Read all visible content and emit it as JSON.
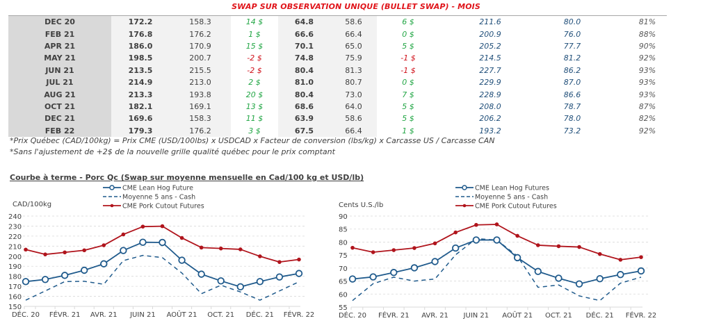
{
  "table": {
    "title": "SWAP SUR OBSERVATION UNIQUE (BULLET SWAP) - MOIS",
    "rows": [
      {
        "month": "DEC 20",
        "qc_cad": "172.2",
        "qc_avg": "158.3",
        "diff1": "14 $",
        "diff1_sign": "pos",
        "us_cents": "64.8",
        "us_avg": "58.6",
        "diff2": "6 $",
        "diff2_sign": "pos",
        "cutout_cad": "211.6",
        "cutout_us": "80.0",
        "ratio": "81%"
      },
      {
        "month": "FEB 21",
        "qc_cad": "176.8",
        "qc_avg": "176.2",
        "diff1": "1 $",
        "diff1_sign": "pos",
        "us_cents": "66.6",
        "us_avg": "66.4",
        "diff2": "0 $",
        "diff2_sign": "pos",
        "cutout_cad": "200.9",
        "cutout_us": "76.0",
        "ratio": "88%"
      },
      {
        "month": "APR 21",
        "qc_cad": "186.0",
        "qc_avg": "170.9",
        "diff1": "15 $",
        "diff1_sign": "pos",
        "us_cents": "70.1",
        "us_avg": "65.0",
        "diff2": "5 $",
        "diff2_sign": "pos",
        "cutout_cad": "205.2",
        "cutout_us": "77.7",
        "ratio": "90%"
      },
      {
        "month": "MAY 21",
        "qc_cad": "198.5",
        "qc_avg": "200.7",
        "diff1": "-2 $",
        "diff1_sign": "neg",
        "us_cents": "74.8",
        "us_avg": "75.9",
        "diff2": "-1 $",
        "diff2_sign": "neg",
        "cutout_cad": "214.5",
        "cutout_us": "81.2",
        "ratio": "92%"
      },
      {
        "month": "JUN 21",
        "qc_cad": "213.5",
        "qc_avg": "215.5",
        "diff1": "-2 $",
        "diff1_sign": "neg",
        "us_cents": "80.4",
        "us_avg": "81.3",
        "diff2": "-1 $",
        "diff2_sign": "neg",
        "cutout_cad": "227.7",
        "cutout_us": "86.2",
        "ratio": "93%"
      },
      {
        "month": "JUL 21",
        "qc_cad": "214.9",
        "qc_avg": "213.0",
        "diff1": "2 $",
        "diff1_sign": "pos",
        "us_cents": "81.0",
        "us_avg": "80.7",
        "diff2": "0 $",
        "diff2_sign": "pos",
        "cutout_cad": "229.9",
        "cutout_us": "87.0",
        "ratio": "93%"
      },
      {
        "month": "AUG 21",
        "qc_cad": "213.3",
        "qc_avg": "193.8",
        "diff1": "20 $",
        "diff1_sign": "pos",
        "us_cents": "80.4",
        "us_avg": "73.0",
        "diff2": "7 $",
        "diff2_sign": "pos",
        "cutout_cad": "228.9",
        "cutout_us": "86.6",
        "ratio": "93%"
      },
      {
        "month": "OCT 21",
        "qc_cad": "182.1",
        "qc_avg": "169.1",
        "diff1": "13 $",
        "diff1_sign": "pos",
        "us_cents": "68.6",
        "us_avg": "64.0",
        "diff2": "5 $",
        "diff2_sign": "pos",
        "cutout_cad": "208.0",
        "cutout_us": "78.7",
        "ratio": "87%"
      },
      {
        "month": "DEC 21",
        "qc_cad": "169.6",
        "qc_avg": "158.3",
        "diff1": "11 $",
        "diff1_sign": "pos",
        "us_cents": "63.9",
        "us_avg": "58.6",
        "diff2": "5 $",
        "diff2_sign": "pos",
        "cutout_cad": "206.2",
        "cutout_us": "78.0",
        "ratio": "82%"
      },
      {
        "month": "FEB 22",
        "qc_cad": "179.3",
        "qc_avg": "176.2",
        "diff1": "3 $",
        "diff1_sign": "pos",
        "us_cents": "67.5",
        "us_avg": "66.4",
        "diff2": "1 $",
        "diff2_sign": "pos",
        "cutout_cad": "193.2",
        "cutout_us": "73.2",
        "ratio": "92%"
      }
    ],
    "notes": [
      "*Prix Québec (CAD/100kg) = Prix CME (USD/100lbs) x USDCAD x Facteur de conversion (lbs/kg) x Carcasse US / Carcasse CAN",
      "*Sans l'ajustement de +2$ de la nouvelle grille qualité québec pour le prix comptant"
    ]
  },
  "charts_title": "Courbe à terme - Porc Qc (Swap sur moyenne mensuelle en Cad/100 kg et USD/lb)",
  "colors": {
    "lean_hog": "#1f5a8c",
    "average": "#1f5a8c",
    "cutout": "#b0141c",
    "positive": "#22a645",
    "negative": "#d0121b",
    "title": "#e0151b"
  },
  "chart_data": [
    {
      "type": "line",
      "title": "",
      "ylabel": "CAD/100kg",
      "xlabel": "",
      "ylim": [
        150,
        240
      ],
      "yticks": [
        150,
        160,
        170,
        180,
        190,
        200,
        210,
        220,
        230,
        240
      ],
      "grid": true,
      "legend_position": "top-center",
      "x": [
        "DÉC. 20",
        "JANV. 21",
        "FÉVR. 21",
        "MARS 21",
        "AVR. 21",
        "MAI 21",
        "JUIN 21",
        "JUIL. 21",
        "AOÛT 21",
        "SEPT. 21",
        "OCT. 21",
        "NOV. 21",
        "DÉC. 21",
        "JANV. 22",
        "FÉVR. 22"
      ],
      "xtick_labels": [
        "DÉC. 20",
        "",
        "FÉVR. 21",
        "",
        "AVR. 21",
        "",
        "JUIN 21",
        "",
        "AOÛT 21",
        "",
        "OCT. 21",
        "",
        "DÉC. 21",
        "",
        "FÉVR. 22"
      ],
      "series": [
        {
          "name": "CME Lean Hog Future",
          "style": "solid-open-marker",
          "values": [
            174.7,
            176.8,
            180.9,
            186.0,
            192.4,
            205.7,
            213.9,
            213.7,
            196.0,
            182.1,
            175.4,
            169.5,
            174.7,
            179.3,
            182.8
          ]
        },
        {
          "name": "Moyenne 5 ans - Cash",
          "style": "dashed",
          "values": [
            156.2,
            165.4,
            174.7,
            175.0,
            172.0,
            195.6,
            200.8,
            198.6,
            183.2,
            162.6,
            171.1,
            164.4,
            156.2,
            165.4,
            174.5
          ]
        },
        {
          "name": "CME Pork Cutout Futures",
          "style": "solid-filled-marker",
          "values": [
            206.6,
            201.8,
            203.8,
            205.9,
            210.9,
            221.7,
            229.5,
            229.9,
            218.2,
            208.6,
            207.7,
            206.8,
            199.9,
            194.2,
            196.7
          ]
        }
      ]
    },
    {
      "type": "line",
      "title": "",
      "ylabel": "Cents U.S./lb",
      "xlabel": "",
      "ylim": [
        55,
        90
      ],
      "yticks": [
        55,
        60,
        65,
        70,
        75,
        80,
        85,
        90
      ],
      "grid": true,
      "legend_position": "top-center",
      "x": [
        "DÉC. 20",
        "JANV. 21",
        "FÉVR. 21",
        "MARS 21",
        "AVR. 21",
        "MAI 21",
        "JUIN 21",
        "JUIL. 21",
        "AOÛT 21",
        "SEPT. 21",
        "OCT. 21",
        "NOV. 21",
        "DÉC. 21",
        "JANV. 22",
        "FÉVR. 22"
      ],
      "xtick_labels": [
        "DÉC. 20",
        "",
        "FÉVR. 21",
        "",
        "AVR. 21",
        "",
        "JUIN 21",
        "",
        "AOÛT 21",
        "",
        "OCT. 21",
        "",
        "DÉC. 21",
        "",
        "FÉVR. 22"
      ],
      "series": [
        {
          "name": "CME Lean Hog Futures",
          "style": "solid-open-marker",
          "values": [
            65.8,
            66.6,
            68.3,
            70.1,
            72.5,
            77.7,
            80.8,
            80.8,
            74.0,
            68.7,
            66.1,
            63.9,
            65.9,
            67.5,
            68.9
          ]
        },
        {
          "name": "Moyenne 5 ans - Cash",
          "style": "dashed",
          "values": [
            57.5,
            64.0,
            66.5,
            65.0,
            65.8,
            75.1,
            81.3,
            80.8,
            74.6,
            62.6,
            63.5,
            59.3,
            57.5,
            64.2,
            66.5
          ]
        },
        {
          "name": "CME Pork Cutout Futures",
          "style": "solid-filled-marker",
          "values": [
            77.8,
            76.1,
            76.9,
            77.7,
            79.5,
            83.7,
            86.6,
            86.8,
            82.4,
            78.8,
            78.4,
            78.1,
            75.4,
            73.2,
            74.2
          ]
        }
      ]
    }
  ]
}
